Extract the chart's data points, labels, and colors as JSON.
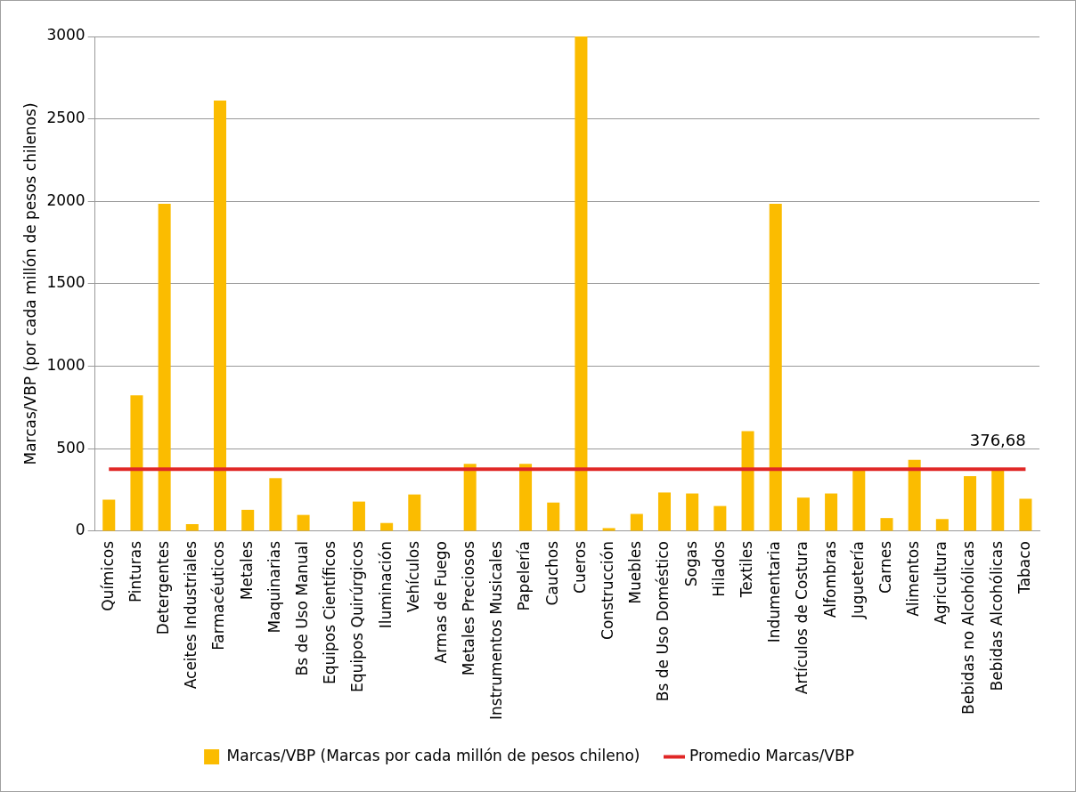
{
  "chart_data": {
    "type": "bar",
    "ylabel": "Marcas/VBP (por cada millón de pesos chilenos)",
    "categories": [
      "Químicos",
      "Pinturas",
      "Detergentes",
      "Aceites Industriales",
      "Farmacéuticos",
      "Metales",
      "Maquinarias",
      "Bs de Uso Manual",
      "Equipos Científicos",
      "Equipos Quirúrgicos",
      "Iluminación",
      "Vehículos",
      "Armas de Fuego",
      "Metales Preciosos",
      "Instrumentos Musicales",
      "Papelería",
      "Cauchos",
      "Cueros",
      "Construcción",
      "Muebles",
      "Bs de Uso Doméstico",
      "Sogas",
      "Hilados",
      "Textiles",
      "Indumentaria",
      "Artículos de Costura",
      "Alfombras",
      "Juguetería",
      "Carnes",
      "Alimentos",
      "Agricultura",
      "Bebidas no Alcohólicas",
      "Bebidas Alcohólicas",
      "Tabaco"
    ],
    "series": [
      {
        "name": "Marcas/VBP (Marcas por cada millón de pesos chileno)",
        "color": "#fbbc00",
        "values": [
          192,
          824,
          1985,
          43,
          2612,
          130,
          322,
          99,
          0,
          180,
          50,
          223,
          0,
          409,
          0,
          409,
          174,
          3000,
          19,
          105,
          235,
          229,
          153,
          607,
          1985,
          204,
          229,
          372,
          80,
          433,
          74,
          334,
          372,
          197
        ]
      },
      {
        "type": "line",
        "name": "Promedio Marcas/VBP",
        "color": "#e02726",
        "values": [
          376.68,
          376.68,
          376.68,
          376.68,
          376.68,
          376.68,
          376.68,
          376.68,
          376.68,
          376.68,
          376.68,
          376.68,
          376.68,
          376.68,
          376.68,
          376.68,
          376.68,
          376.68,
          376.68,
          376.68,
          376.68,
          376.68,
          376.68,
          376.68,
          376.68,
          376.68,
          376.68,
          376.68,
          376.68,
          376.68,
          376.68,
          376.68,
          376.68,
          376.68
        ]
      }
    ],
    "annotations": [
      {
        "text": "376,68",
        "x": "Bebidas Alcohólicas",
        "y": 376.68
      }
    ],
    "ylim": [
      0,
      3000
    ],
    "yticks": [
      0,
      500,
      1000,
      1500,
      2000,
      2500,
      3000
    ],
    "grid": "y",
    "legend": "bottom",
    "marker": "none",
    "line_style": "solid"
  }
}
